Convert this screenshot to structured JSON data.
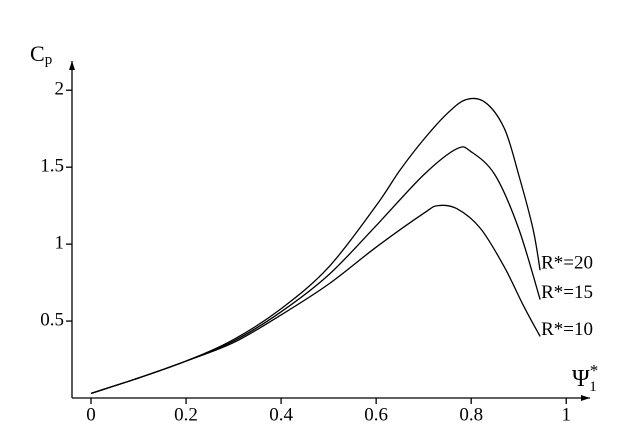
{
  "chart_data": {
    "type": "line",
    "ylabel": {
      "main": "C",
      "sub": "p"
    },
    "xlabel": {
      "main": "Ψ",
      "sub": "1",
      "sup": "*"
    },
    "xlim": [
      -0.04,
      1.05
    ],
    "ylim": [
      0,
      2.19
    ],
    "xticks": [
      0,
      0.2,
      0.4,
      0.6,
      0.8,
      1
    ],
    "yticks": [
      0.5,
      1,
      1.5,
      2
    ],
    "color": "#000000",
    "series": [
      {
        "name": "R*=20",
        "x": [
          0,
          0.1,
          0.2,
          0.3,
          0.4,
          0.5,
          0.6,
          0.65,
          0.7,
          0.75,
          0.79,
          0.83,
          0.87,
          0.9,
          0.93,
          0.945
        ],
        "values": [
          0.03,
          0.13,
          0.24,
          0.38,
          0.58,
          0.85,
          1.25,
          1.48,
          1.68,
          1.85,
          1.94,
          1.92,
          1.75,
          1.45,
          1.1,
          0.83
        ]
      },
      {
        "name": "R*=15",
        "x": [
          0,
          0.1,
          0.2,
          0.3,
          0.4,
          0.5,
          0.6,
          0.7,
          0.77,
          0.8,
          0.85,
          0.9,
          0.945
        ],
        "values": [
          0.03,
          0.13,
          0.24,
          0.37,
          0.56,
          0.8,
          1.12,
          1.45,
          1.62,
          1.6,
          1.45,
          1.1,
          0.64
        ]
      },
      {
        "name": "R*=10",
        "x": [
          0,
          0.1,
          0.2,
          0.3,
          0.4,
          0.5,
          0.6,
          0.7,
          0.73,
          0.77,
          0.82,
          0.87,
          0.91,
          0.945
        ],
        "values": [
          0.03,
          0.13,
          0.24,
          0.36,
          0.54,
          0.74,
          0.98,
          1.2,
          1.25,
          1.23,
          1.1,
          0.85,
          0.6,
          0.4
        ]
      }
    ]
  }
}
